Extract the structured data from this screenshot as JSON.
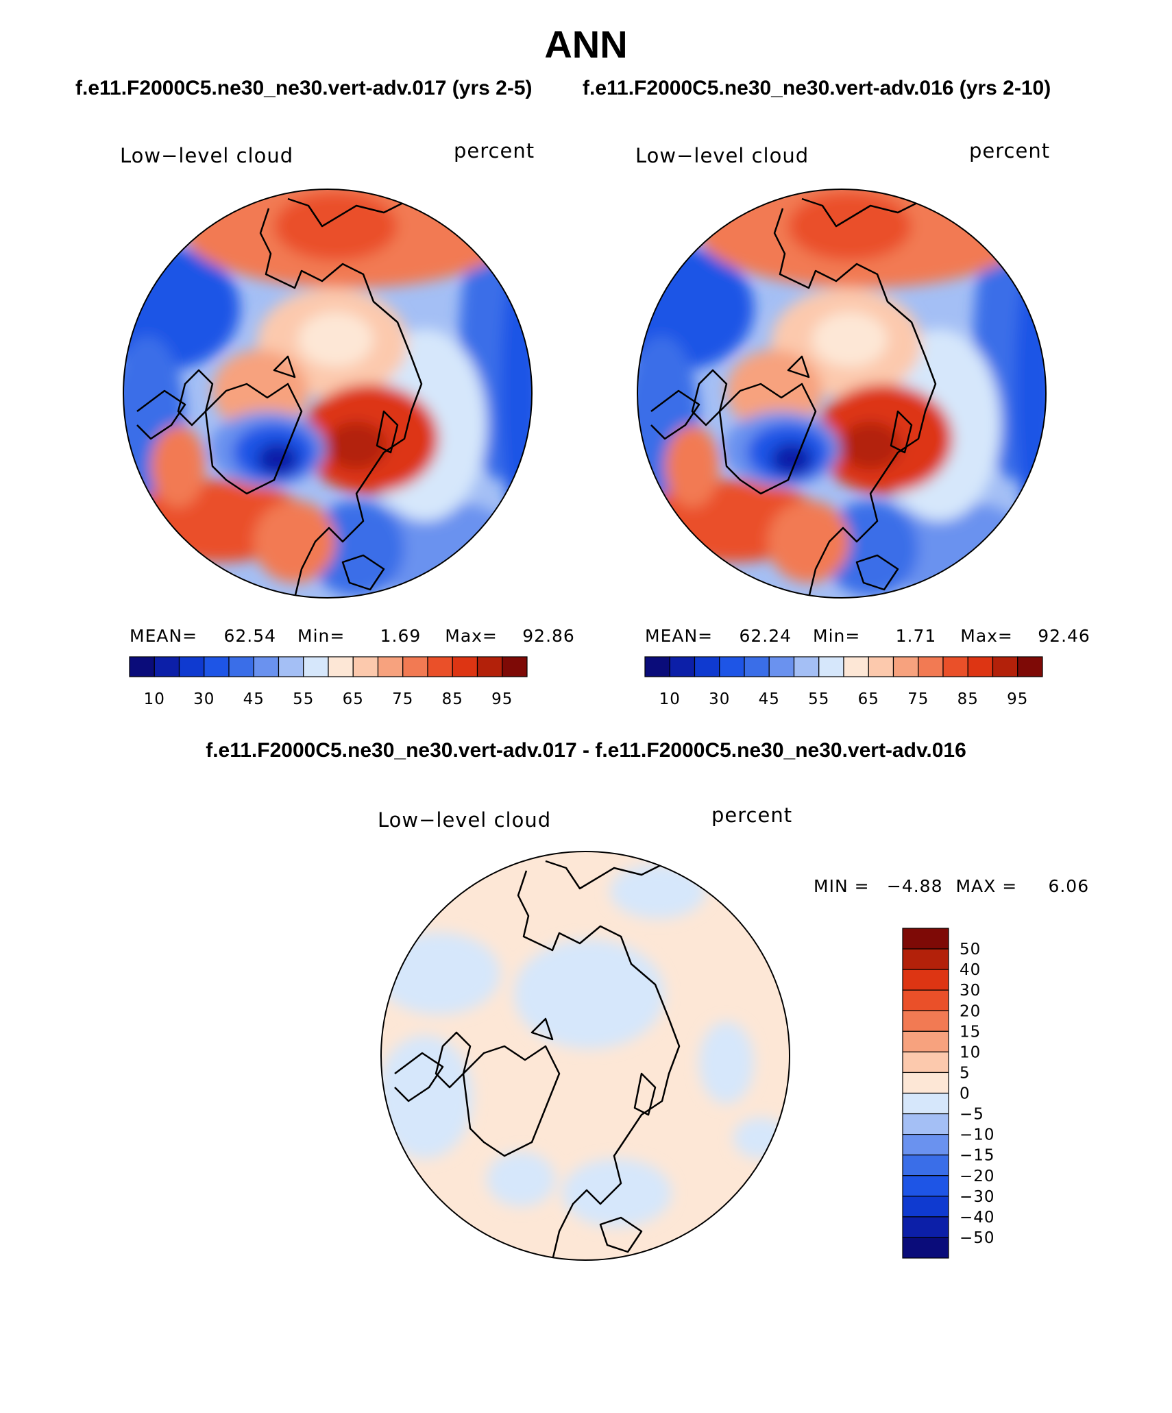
{
  "title": "ANN",
  "subtitles": {
    "left": "f.e11.F2000C5.ne30_ne30.vert-adv.017 (yrs 2-5)",
    "right": "f.e11.F2000C5.ne30_ne30.vert-adv.016 (yrs 2-10)"
  },
  "diff_title": "f.e11.F2000C5.ne30_ne30.vert-adv.017 - f.e11.F2000C5.ne30_ne30.vert-adv.016",
  "panels": [
    {
      "variable": "Low−level cloud",
      "units": "percent",
      "mean_label": "MEAN=",
      "mean": "62.54",
      "min_label": "Min=",
      "min": "1.69",
      "max_label": "Max=",
      "max": "92.86"
    },
    {
      "variable": "Low−level cloud",
      "units": "percent",
      "mean_label": "MEAN=",
      "mean": "62.24",
      "min_label": "Min=",
      "min": "1.71",
      "max_label": "Max=",
      "max": "92.46"
    }
  ],
  "diff_panel": {
    "variable": "Low−level cloud",
    "units": "percent",
    "min_label": "MIN =",
    "min": "−4.88",
    "max_label": "MAX =",
    "max": "6.06"
  },
  "chart_data": [
    {
      "type": "heatmap",
      "projection": "north-polar-stereographic",
      "variable": "Low-level cloud",
      "units": "percent",
      "colorbar": {
        "orientation": "horizontal",
        "levels": [
          5,
          10,
          15,
          20,
          25,
          30,
          35,
          40,
          45,
          50,
          55,
          60,
          65,
          70,
          75,
          80,
          85,
          90,
          95
        ],
        "tick_labels": [
          "10",
          "30",
          "45",
          "55",
          "65",
          "75",
          "85",
          "95"
        ],
        "colors": [
          "#0a0c7a",
          "#0c1fa8",
          "#0f3ad0",
          "#1e55e6",
          "#3a6ee8",
          "#6a92ef",
          "#a4bff5",
          "#d6e7fb",
          "#fde7d6",
          "#fcc9ad",
          "#f7a27e",
          "#f27a53",
          "#ea5029",
          "#dd3513",
          "#b3210a",
          "#7e0a06"
        ]
      },
      "stats": {
        "mean": 62.54,
        "min": 1.69,
        "max": 92.86
      }
    },
    {
      "type": "heatmap",
      "projection": "north-polar-stereographic",
      "variable": "Low-level cloud",
      "units": "percent",
      "colorbar": {
        "orientation": "horizontal",
        "tick_labels": [
          "10",
          "30",
          "45",
          "55",
          "65",
          "75",
          "85",
          "95"
        ],
        "colors": [
          "#0a0c7a",
          "#0c1fa8",
          "#0f3ad0",
          "#1e55e6",
          "#3a6ee8",
          "#6a92ef",
          "#a4bff5",
          "#d6e7fb",
          "#fde7d6",
          "#fcc9ad",
          "#f7a27e",
          "#f27a53",
          "#ea5029",
          "#dd3513",
          "#b3210a",
          "#7e0a06"
        ]
      },
      "stats": {
        "mean": 62.24,
        "min": 1.71,
        "max": 92.46
      }
    },
    {
      "type": "heatmap",
      "projection": "north-polar-stereographic",
      "variable": "Low-level cloud difference",
      "units": "percent",
      "colorbar": {
        "orientation": "vertical",
        "tick_labels": [
          "50",
          "40",
          "30",
          "20",
          "15",
          "10",
          "5",
          "0",
          "−5",
          "−10",
          "−15",
          "−20",
          "−30",
          "−40",
          "−50"
        ],
        "colors": [
          "#7e0a06",
          "#b3210a",
          "#dd3513",
          "#ea5029",
          "#f27a53",
          "#f7a27e",
          "#fcc9ad",
          "#fde7d6",
          "#d6e7fb",
          "#a4bff5",
          "#6a92ef",
          "#3a6ee8",
          "#1e55e6",
          "#0f3ad0",
          "#0c1fa8",
          "#0a0c7a"
        ]
      },
      "stats": {
        "min": -4.88,
        "max": 6.06
      }
    }
  ]
}
